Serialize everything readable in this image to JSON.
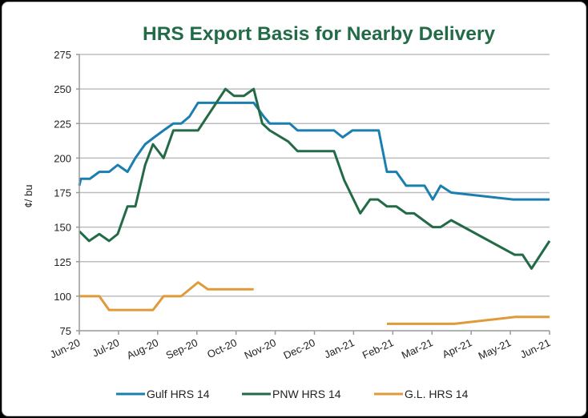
{
  "chart_data": {
    "type": "line",
    "title": "HRS Export Basis for Nearby Delivery",
    "xlabel": "",
    "ylabel": "¢/ bu",
    "ylim": [
      75,
      275
    ],
    "yticks": [
      75,
      100,
      125,
      150,
      175,
      200,
      225,
      250,
      275
    ],
    "xlim_months": [
      0,
      12
    ],
    "x_tick_labels": [
      "Jun-20",
      "Jul-20",
      "Aug-20",
      "Sep-20",
      "Oct-20",
      "Nov-20",
      "Dec-20",
      "Jan-21",
      "Feb-21",
      "Mar-21",
      "Apr-21",
      "May-21",
      "Jun-21"
    ],
    "grid": true,
    "legend_position": "bottom",
    "series": [
      {
        "name": "Gulf HRS 14",
        "color": "#1a7fb0",
        "segments": [
          [
            [
              0,
              180
            ],
            [
              0.04,
              185
            ],
            [
              0.27,
              185
            ],
            [
              0.51,
              190
            ],
            [
              0.76,
              190
            ],
            [
              0.98,
              195
            ],
            [
              1.23,
              190
            ],
            [
              1.43,
              200
            ],
            [
              1.68,
              210
            ],
            [
              1.91,
              215
            ],
            [
              2.15,
              220
            ],
            [
              2.4,
              225
            ],
            [
              2.6,
              225
            ],
            [
              2.81,
              230
            ],
            [
              3.03,
              240
            ],
            [
              4.45,
              240
            ],
            [
              4.71,
              230
            ],
            [
              4.86,
              225
            ],
            [
              5.37,
              225
            ],
            [
              5.57,
              220
            ],
            [
              6.5,
              220
            ],
            [
              6.72,
              215
            ],
            [
              6.97,
              220
            ],
            [
              7.64,
              220
            ],
            [
              7.85,
              190
            ],
            [
              8.09,
              190
            ],
            [
              8.34,
              180
            ],
            [
              8.81,
              180
            ],
            [
              9.02,
              170
            ],
            [
              9.22,
              180
            ],
            [
              9.49,
              175
            ],
            [
              11.07,
              170
            ],
            [
              12,
              170
            ]
          ]
        ]
      },
      {
        "name": "PNW HRS 14",
        "color": "#236b47",
        "segments": [
          [
            [
              0,
              147
            ],
            [
              0.25,
              140
            ],
            [
              0.51,
              145
            ],
            [
              0.76,
              140
            ],
            [
              0.98,
              145
            ],
            [
              1.23,
              165
            ],
            [
              1.43,
              165
            ],
            [
              1.68,
              195
            ],
            [
              1.88,
              210
            ],
            [
              2.15,
              200
            ],
            [
              2.4,
              220
            ],
            [
              3.03,
              220
            ],
            [
              3.73,
              250
            ],
            [
              3.95,
              245
            ],
            [
              4.2,
              245
            ],
            [
              4.45,
              250
            ],
            [
              4.67,
              225
            ],
            [
              4.86,
              220
            ],
            [
              5.33,
              212
            ],
            [
              5.57,
              205
            ],
            [
              6.5,
              205
            ],
            [
              6.76,
              184
            ],
            [
              7.17,
              160
            ],
            [
              7.42,
              170
            ],
            [
              7.62,
              170
            ],
            [
              7.85,
              165
            ],
            [
              8.09,
              165
            ],
            [
              8.34,
              160
            ],
            [
              8.54,
              160
            ],
            [
              9.02,
              150
            ],
            [
              9.22,
              150
            ],
            [
              9.49,
              155
            ],
            [
              11.11,
              130
            ],
            [
              11.31,
              130
            ],
            [
              11.54,
              120
            ],
            [
              12,
              140
            ]
          ]
        ]
      },
      {
        "name": "G.L. HRS 14",
        "color": "#e09a3a",
        "segments": [
          [
            [
              0,
              100
            ],
            [
              0.51,
              100
            ],
            [
              0.76,
              90
            ],
            [
              1.88,
              90
            ],
            [
              2.15,
              100
            ],
            [
              2.6,
              100
            ],
            [
              3.03,
              110
            ],
            [
              3.28,
              105
            ],
            [
              4.45,
              105
            ]
          ],
          [
            [
              7.85,
              80
            ],
            [
              9.57,
              80
            ],
            [
              11.13,
              85
            ],
            [
              12,
              85
            ]
          ]
        ]
      }
    ]
  }
}
